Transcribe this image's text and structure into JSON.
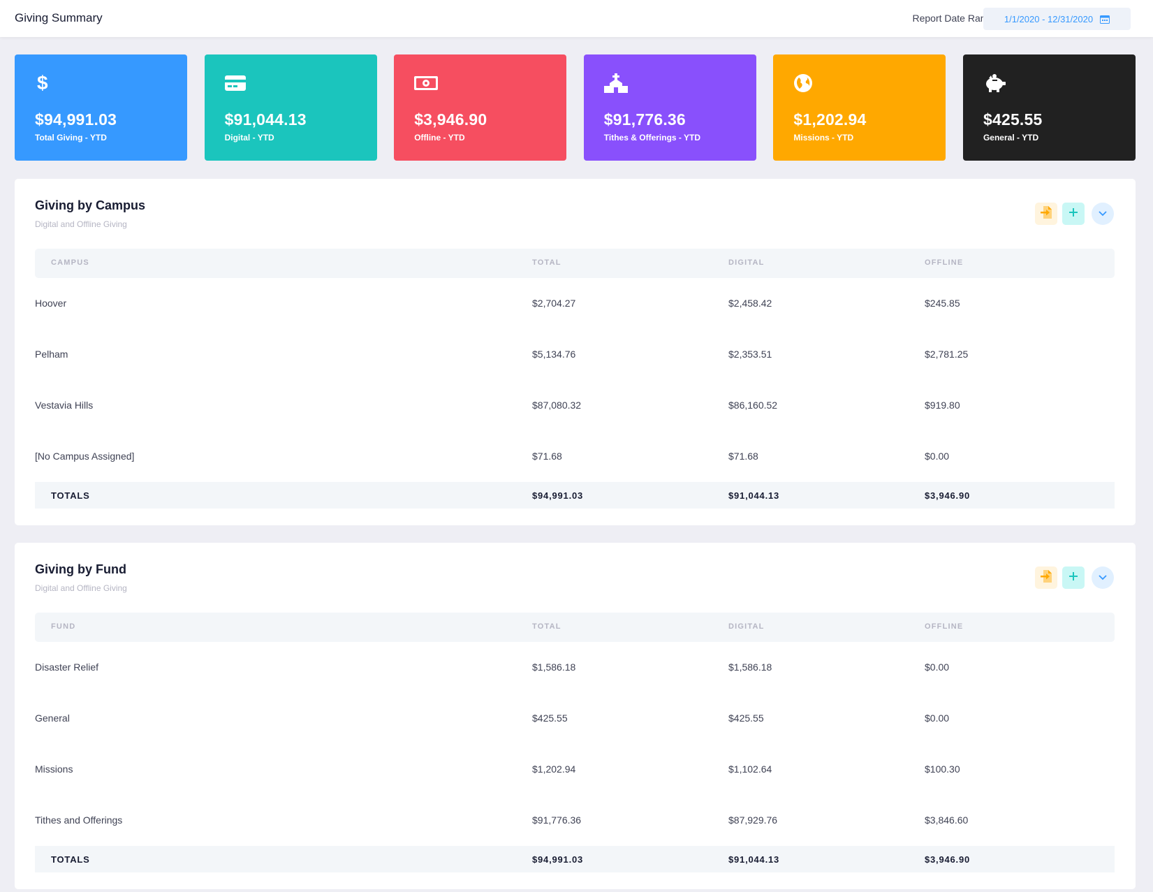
{
  "header": {
    "title": "Giving Summary",
    "range_label": "Report Date Range:",
    "range_value": "1/1/2020 - 12/31/2020"
  },
  "stats": [
    {
      "value": "$94,991.03",
      "label": "Total Giving - YTD",
      "icon": "dollar-icon",
      "color": "#3699ff"
    },
    {
      "value": "$91,044.13",
      "label": "Digital - YTD",
      "icon": "credit-card-icon",
      "color": "#1bc5bd"
    },
    {
      "value": "$3,946.90",
      "label": "Offline - YTD",
      "icon": "money-bill-icon",
      "color": "#f64e60"
    },
    {
      "value": "$91,776.36",
      "label": "Tithes & Offerings - YTD",
      "icon": "church-icon",
      "color": "#8950fc"
    },
    {
      "value": "$1,202.94",
      "label": "Missions - YTD",
      "icon": "globe-icon",
      "color": "#ffa800"
    },
    {
      "value": "$425.55",
      "label": "General - YTD",
      "icon": "piggy-bank-icon",
      "color": "#212121"
    }
  ],
  "campus": {
    "title": "Giving by Campus",
    "subtitle": "Digital and Offline Giving",
    "columns": [
      "CAMPUS",
      "TOTAL",
      "DIGITAL",
      "OFFLINE"
    ],
    "rows": [
      [
        "Hoover",
        "$2,704.27",
        "$2,458.42",
        "$245.85"
      ],
      [
        "Pelham",
        "$5,134.76",
        "$2,353.51",
        "$2,781.25"
      ],
      [
        "Vestavia Hills",
        "$87,080.32",
        "$86,160.52",
        "$919.80"
      ],
      [
        "[No Campus Assigned]",
        "$71.68",
        "$71.68",
        "$0.00"
      ]
    ],
    "totals": [
      "TOTALS",
      "$94,991.03",
      "$91,044.13",
      "$3,946.90"
    ]
  },
  "fund": {
    "title": "Giving by Fund",
    "subtitle": "Digital and Offline Giving",
    "columns": [
      "FUND",
      "TOTAL",
      "DIGITAL",
      "OFFLINE"
    ],
    "rows": [
      [
        "Disaster Relief",
        "$1,586.18",
        "$1,586.18",
        "$0.00"
      ],
      [
        "General",
        "$425.55",
        "$425.55",
        "$0.00"
      ],
      [
        "Missions",
        "$1,202.94",
        "$1,102.64",
        "$100.30"
      ],
      [
        "Tithes and Offerings",
        "$91,776.36",
        "$87,929.76",
        "$3,846.60"
      ]
    ],
    "totals": [
      "TOTALS",
      "$94,991.03",
      "$91,044.13",
      "$3,946.90"
    ]
  },
  "colors": {
    "accent": "#3699ff",
    "export_icon": "#ffa800",
    "add_icon": "#1bc5bd",
    "collapse_icon": "#3699ff"
  }
}
